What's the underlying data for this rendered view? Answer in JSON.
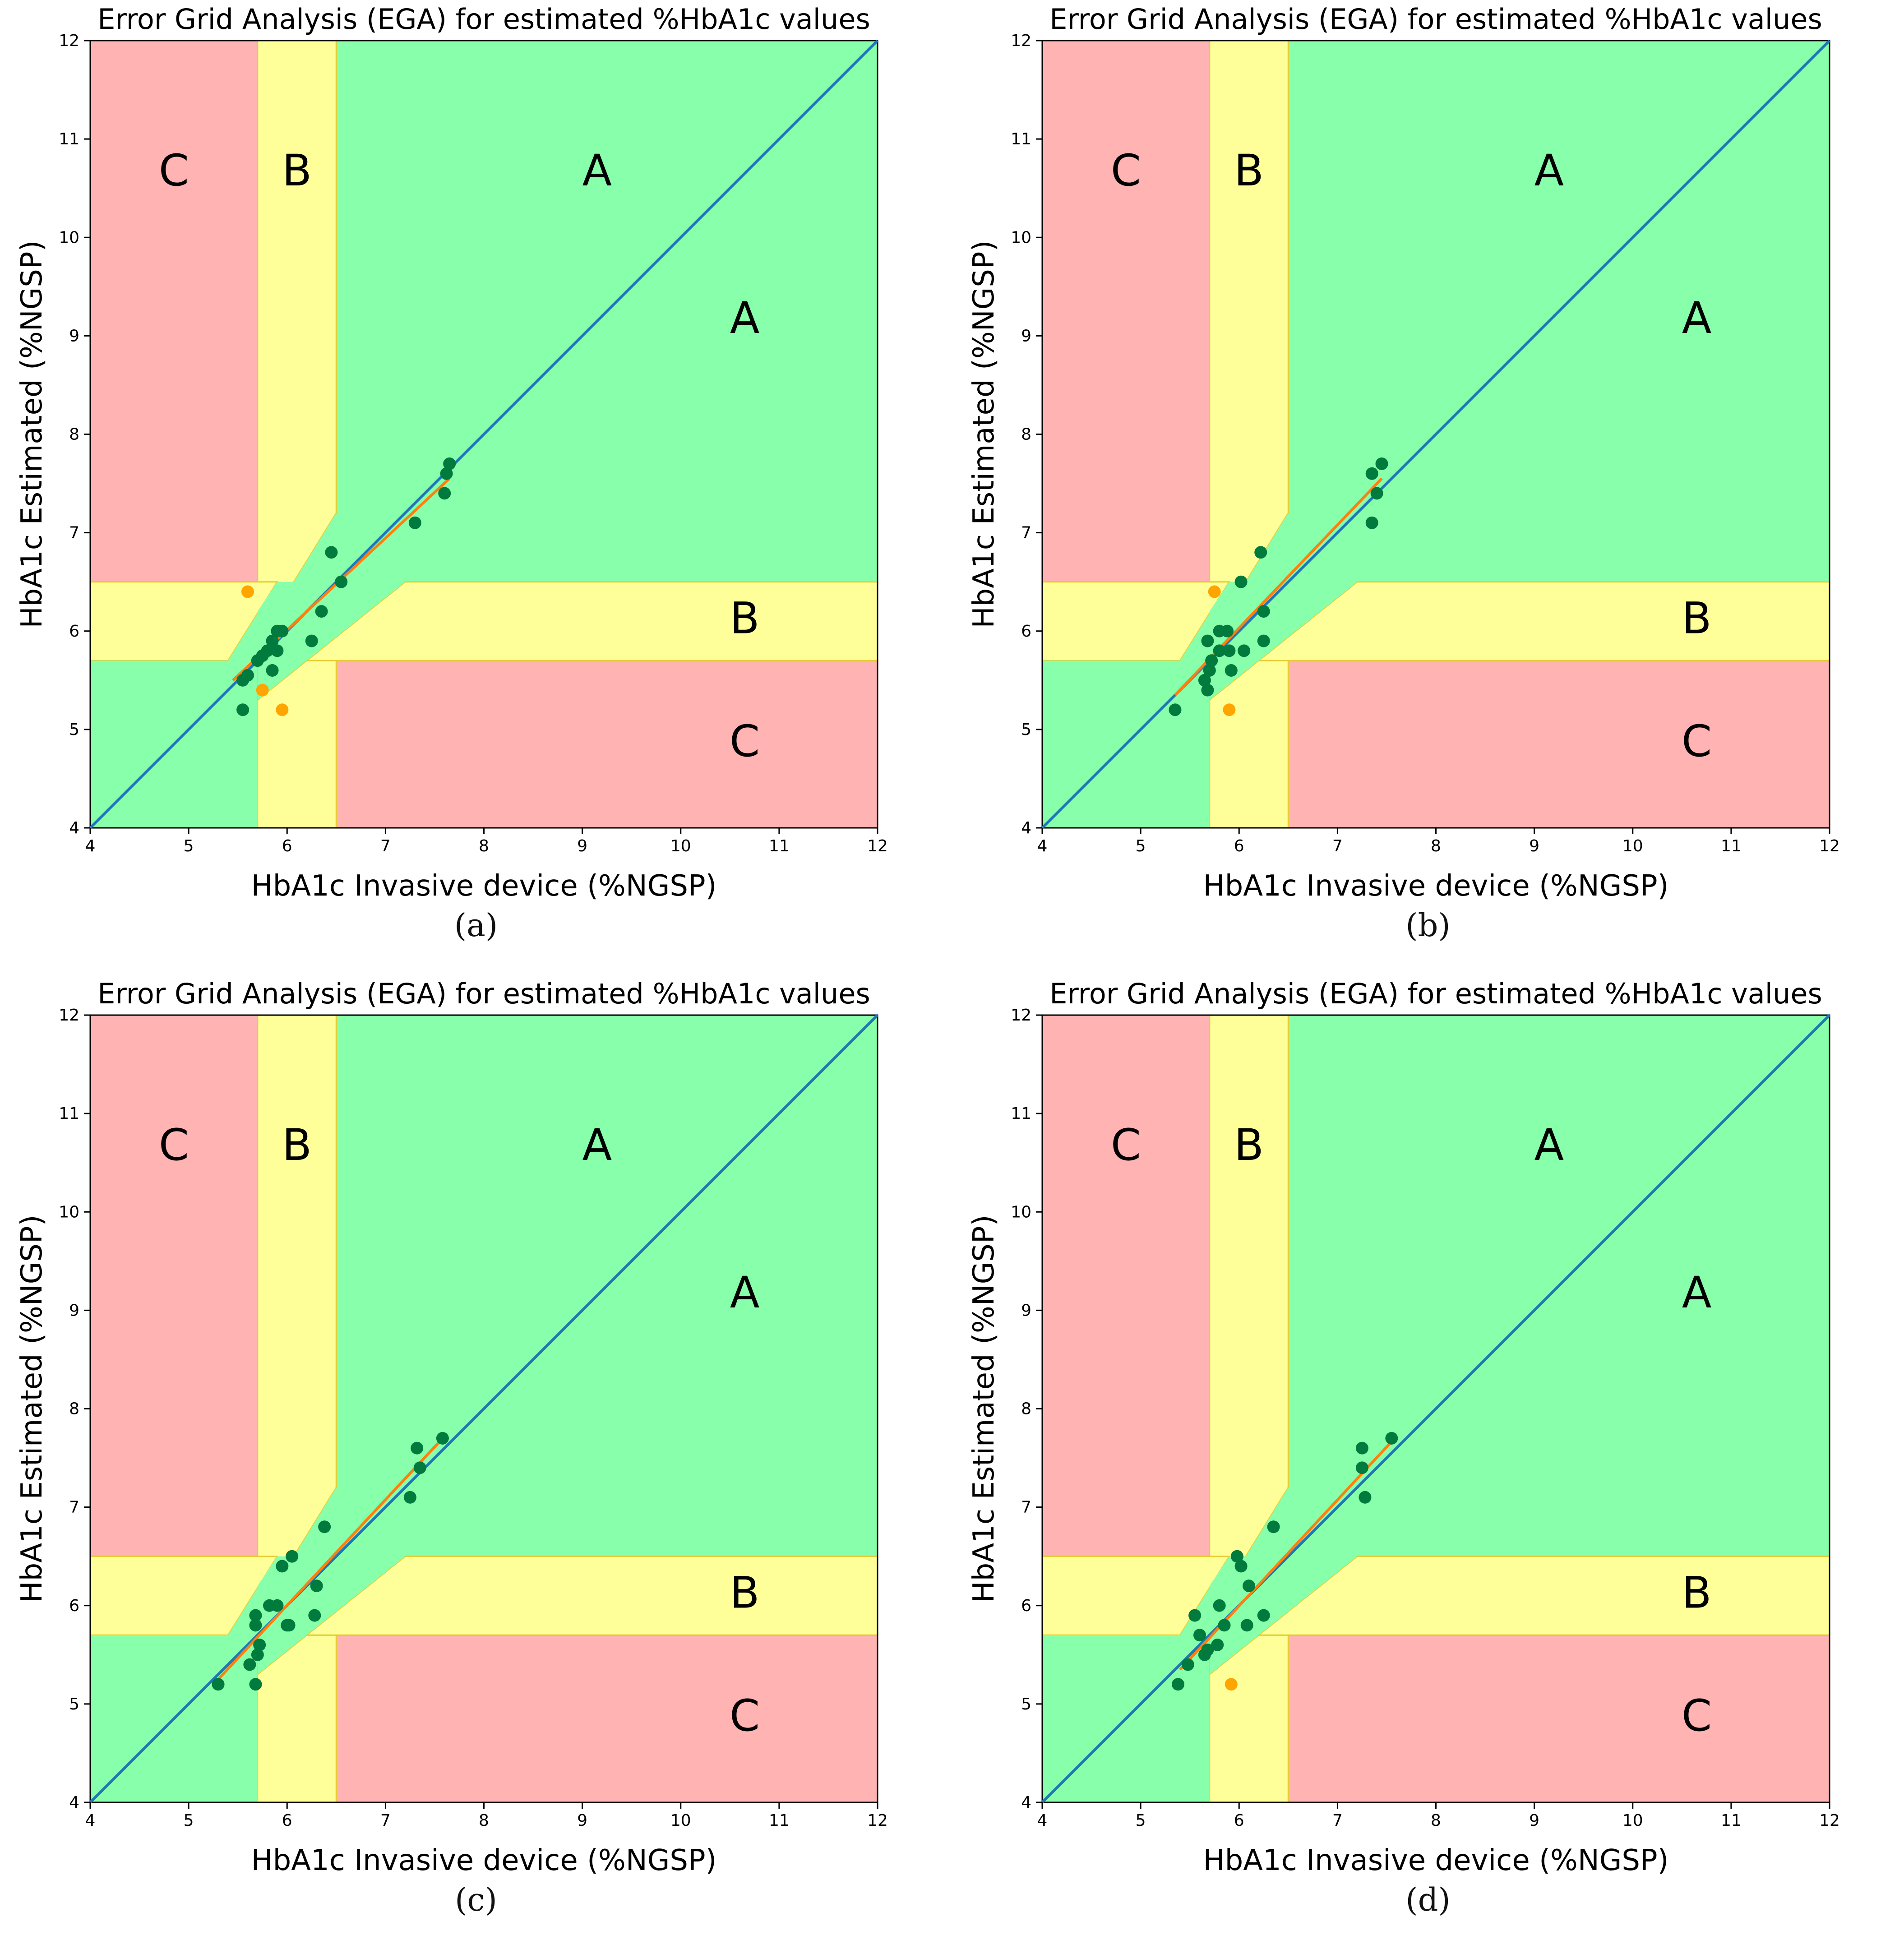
{
  "colors": {
    "zone_a": "#88ffaa",
    "zone_b": "#ffff99",
    "zone_c": "#ffb3b3",
    "zone_a_edge": "#66cc66",
    "zone_b_edge": "#e6cc33",
    "zone_c_edge": "#ff7777",
    "identity_line": "#1f77b4",
    "fit_line": "#ff7f0e",
    "point_in": "#007a3d",
    "point_out": "#ffa500"
  },
  "panels": [
    {
      "caption": "(a)",
      "chart_data": {
        "type": "scatter",
        "title": "Error Grid Analysis (EGA) for estimated %HbA1c values",
        "xlabel": "HbA1c Invasive device (%NGSP)",
        "ylabel": "HbA1c Estimated (%NGSP)",
        "xlim": [
          4,
          12
        ],
        "ylim": [
          4,
          12
        ],
        "xticks": [
          "4",
          "5",
          "6",
          "7",
          "8",
          "9",
          "10",
          "11",
          "12"
        ],
        "yticks": [
          "4",
          "5",
          "6",
          "7",
          "8",
          "9",
          "10",
          "11",
          "12"
        ],
        "zone_labels": [
          {
            "text": "C",
            "x": 4.85,
            "y": 10.65
          },
          {
            "text": "B",
            "x": 6.1,
            "y": 10.65
          },
          {
            "text": "A",
            "x": 9.15,
            "y": 10.65
          },
          {
            "text": "A",
            "x": 10.65,
            "y": 9.15
          },
          {
            "text": "B",
            "x": 10.65,
            "y": 6.1
          },
          {
            "text": "C",
            "x": 10.65,
            "y": 4.85
          }
        ],
        "points_in_zone": [
          [
            5.55,
            5.5
          ],
          [
            5.6,
            5.55
          ],
          [
            5.7,
            5.7
          ],
          [
            5.75,
            5.75
          ],
          [
            5.8,
            5.8
          ],
          [
            5.85,
            5.9
          ],
          [
            5.85,
            5.6
          ],
          [
            5.9,
            5.8
          ],
          [
            5.95,
            6.0
          ],
          [
            5.9,
            6.0
          ],
          [
            6.25,
            5.9
          ],
          [
            6.35,
            6.2
          ],
          [
            6.45,
            6.8
          ],
          [
            6.55,
            6.5
          ],
          [
            7.3,
            7.1
          ],
          [
            7.6,
            7.4
          ],
          [
            7.62,
            7.6
          ],
          [
            7.65,
            7.7
          ],
          [
            5.55,
            5.2
          ]
        ],
        "points_outside": [
          [
            5.6,
            6.4
          ],
          [
            5.75,
            5.4
          ],
          [
            5.95,
            5.2
          ]
        ],
        "fit_line": [
          [
            5.45,
            5.5
          ],
          [
            7.65,
            7.55
          ]
        ]
      }
    },
    {
      "caption": "(b)",
      "chart_data": {
        "type": "scatter",
        "title": "Error Grid Analysis (EGA) for estimated %HbA1c values",
        "xlabel": "HbA1c Invasive device (%NGSP)",
        "ylabel": "HbA1c Estimated (%NGSP)",
        "xlim": [
          4,
          12
        ],
        "ylim": [
          4,
          12
        ],
        "xticks": [
          "4",
          "5",
          "6",
          "7",
          "8",
          "9",
          "10",
          "11",
          "12"
        ],
        "yticks": [
          "4",
          "5",
          "6",
          "7",
          "8",
          "9",
          "10",
          "11",
          "12"
        ],
        "zone_labels": [
          {
            "text": "C",
            "x": 4.85,
            "y": 10.65
          },
          {
            "text": "B",
            "x": 6.1,
            "y": 10.65
          },
          {
            "text": "A",
            "x": 9.15,
            "y": 10.65
          },
          {
            "text": "A",
            "x": 10.65,
            "y": 9.15
          },
          {
            "text": "B",
            "x": 10.65,
            "y": 6.1
          },
          {
            "text": "C",
            "x": 10.65,
            "y": 4.85
          }
        ],
        "points_in_zone": [
          [
            5.35,
            5.2
          ],
          [
            5.65,
            5.5
          ],
          [
            5.68,
            5.4
          ],
          [
            5.7,
            5.6
          ],
          [
            5.72,
            5.7
          ],
          [
            5.68,
            5.9
          ],
          [
            5.8,
            5.8
          ],
          [
            5.8,
            6.0
          ],
          [
            5.88,
            6.0
          ],
          [
            5.9,
            5.8
          ],
          [
            5.92,
            5.6
          ],
          [
            6.05,
            5.8
          ],
          [
            6.02,
            6.5
          ],
          [
            6.22,
            6.8
          ],
          [
            6.25,
            6.2
          ],
          [
            6.25,
            5.9
          ],
          [
            7.35,
            7.6
          ],
          [
            7.35,
            7.1
          ],
          [
            7.4,
            7.4
          ],
          [
            7.45,
            7.7
          ]
        ],
        "points_outside": [
          [
            5.75,
            6.4
          ],
          [
            5.9,
            5.2
          ]
        ],
        "fit_line": [
          [
            5.35,
            5.35
          ],
          [
            7.45,
            7.55
          ]
        ]
      }
    },
    {
      "caption": "(c)",
      "chart_data": {
        "type": "scatter",
        "title": "Error Grid Analysis (EGA) for estimated %HbA1c values",
        "xlabel": "HbA1c Invasive device (%NGSP)",
        "ylabel": "HbA1c Estimated (%NGSP)",
        "xlim": [
          4,
          12
        ],
        "ylim": [
          4,
          12
        ],
        "xticks": [
          "4",
          "5",
          "6",
          "7",
          "8",
          "9",
          "10",
          "11",
          "12"
        ],
        "yticks": [
          "4",
          "5",
          "6",
          "7",
          "8",
          "9",
          "10",
          "11",
          "12"
        ],
        "zone_labels": [
          {
            "text": "C",
            "x": 4.85,
            "y": 10.65
          },
          {
            "text": "B",
            "x": 6.1,
            "y": 10.65
          },
          {
            "text": "A",
            "x": 9.15,
            "y": 10.65
          },
          {
            "text": "A",
            "x": 10.65,
            "y": 9.15
          },
          {
            "text": "B",
            "x": 10.65,
            "y": 6.1
          },
          {
            "text": "C",
            "x": 10.65,
            "y": 4.85
          }
        ],
        "points_in_zone": [
          [
            5.3,
            5.2
          ],
          [
            5.62,
            5.4
          ],
          [
            5.68,
            5.2
          ],
          [
            5.7,
            5.5
          ],
          [
            5.72,
            5.6
          ],
          [
            5.68,
            5.8
          ],
          [
            5.68,
            5.9
          ],
          [
            5.82,
            6.0
          ],
          [
            5.9,
            6.0
          ],
          [
            5.95,
            6.4
          ],
          [
            6.0,
            5.8
          ],
          [
            6.02,
            5.8
          ],
          [
            6.05,
            6.5
          ],
          [
            6.28,
            5.9
          ],
          [
            6.3,
            6.2
          ],
          [
            6.38,
            6.8
          ],
          [
            7.25,
            7.1
          ],
          [
            7.32,
            7.6
          ],
          [
            7.35,
            7.4
          ],
          [
            7.58,
            7.7
          ]
        ],
        "points_outside": [],
        "fit_line": [
          [
            5.3,
            5.25
          ],
          [
            7.6,
            7.72
          ]
        ]
      }
    },
    {
      "caption": "(d)",
      "chart_data": {
        "type": "scatter",
        "title": "Error Grid Analysis (EGA) for estimated %HbA1c values",
        "xlabel": "HbA1c Invasive device (%NGSP)",
        "ylabel": "HbA1c Estimated (%NGSP)",
        "xlim": [
          4,
          12
        ],
        "ylim": [
          4,
          12
        ],
        "xticks": [
          "4",
          "5",
          "6",
          "7",
          "8",
          "9",
          "10",
          "11",
          "12"
        ],
        "yticks": [
          "4",
          "5",
          "6",
          "7",
          "8",
          "9",
          "10",
          "11",
          "12"
        ],
        "zone_labels": [
          {
            "text": "C",
            "x": 4.85,
            "y": 10.65
          },
          {
            "text": "B",
            "x": 6.1,
            "y": 10.65
          },
          {
            "text": "A",
            "x": 9.15,
            "y": 10.65
          },
          {
            "text": "A",
            "x": 10.65,
            "y": 9.15
          },
          {
            "text": "B",
            "x": 10.65,
            "y": 6.1
          },
          {
            "text": "C",
            "x": 10.65,
            "y": 4.85
          }
        ],
        "points_in_zone": [
          [
            5.38,
            5.2
          ],
          [
            5.48,
            5.4
          ],
          [
            5.55,
            5.9
          ],
          [
            5.6,
            5.7
          ],
          [
            5.65,
            5.5
          ],
          [
            5.68,
            5.55
          ],
          [
            5.78,
            5.6
          ],
          [
            5.8,
            6.0
          ],
          [
            5.85,
            5.8
          ],
          [
            5.98,
            6.5
          ],
          [
            6.02,
            6.4
          ],
          [
            6.08,
            5.8
          ],
          [
            6.1,
            6.2
          ],
          [
            6.25,
            5.9
          ],
          [
            6.35,
            6.8
          ],
          [
            7.25,
            7.4
          ],
          [
            7.25,
            7.6
          ],
          [
            7.28,
            7.1
          ],
          [
            7.55,
            7.7
          ]
        ],
        "points_outside": [
          [
            5.92,
            5.2
          ]
        ],
        "fit_line": [
          [
            5.4,
            5.35
          ],
          [
            7.6,
            7.72
          ]
        ]
      }
    }
  ]
}
